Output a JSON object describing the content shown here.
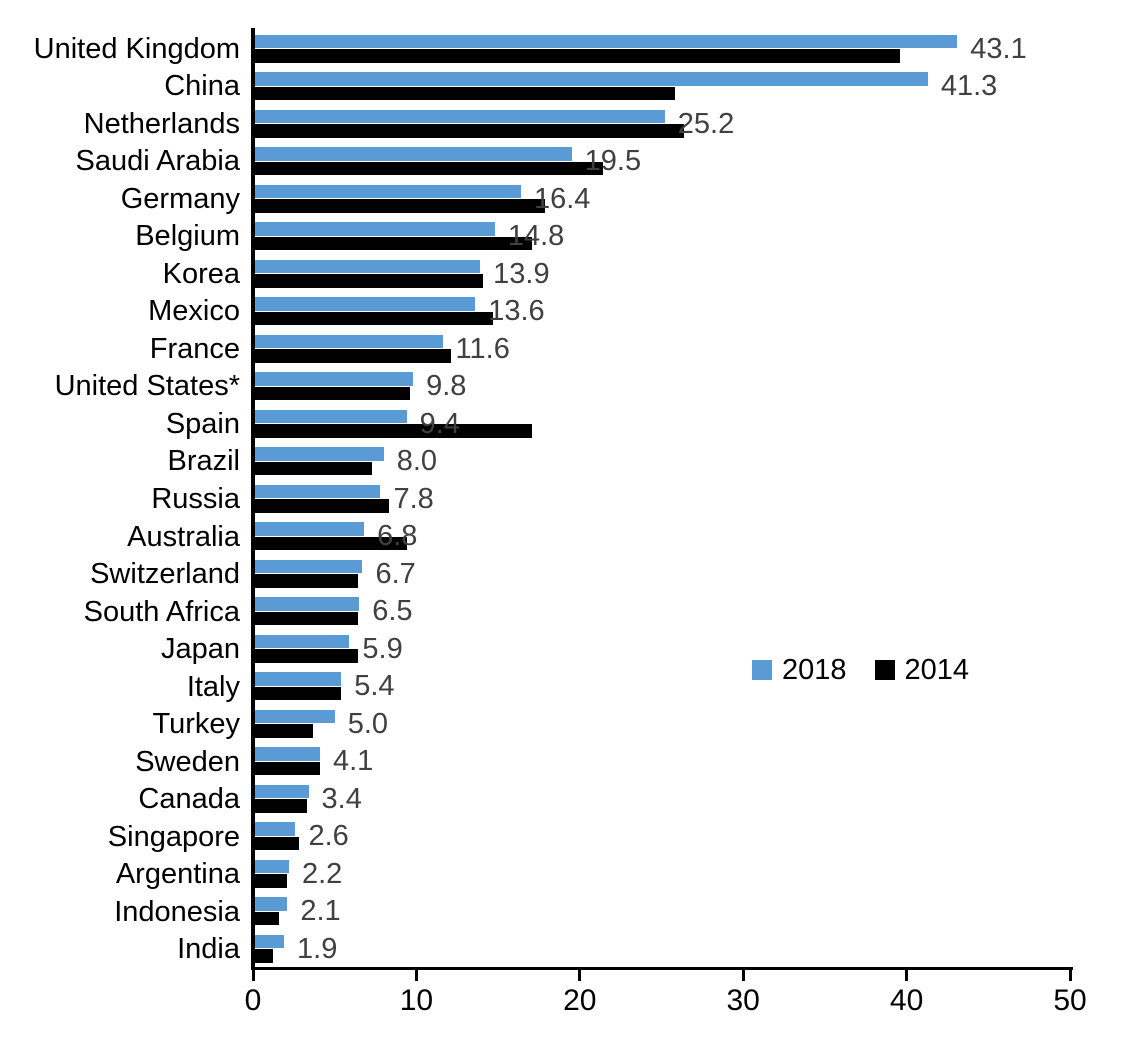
{
  "chart_data": {
    "type": "bar",
    "orientation": "horizontal",
    "title": "",
    "xlabel": "",
    "ylabel": "",
    "xlim": [
      0,
      50
    ],
    "x_ticks": [
      "0",
      "10",
      "20",
      "30",
      "40",
      "50"
    ],
    "grid": false,
    "legend_position": "center-right",
    "categories": [
      "United Kingdom",
      "China",
      "Netherlands",
      "Saudi Arabia",
      "Germany",
      "Belgium",
      "Korea",
      "Mexico",
      "France",
      "United States*",
      "Spain",
      "Brazil",
      "Russia",
      "Australia",
      "Switzerland",
      "South Africa",
      "Japan",
      "Italy",
      "Turkey",
      "Sweden",
      "Canada",
      "Singapore",
      "Argentina",
      "Indonesia",
      "India"
    ],
    "series": [
      {
        "name": "2018",
        "color": "#5B9BD5",
        "values": [
          43.1,
          41.3,
          25.2,
          19.5,
          16.4,
          14.8,
          13.9,
          13.6,
          11.6,
          9.8,
          9.4,
          8.0,
          7.8,
          6.8,
          6.7,
          6.5,
          5.9,
          5.4,
          5.0,
          4.1,
          3.4,
          2.6,
          2.2,
          2.1,
          1.9
        ]
      },
      {
        "name": "2014",
        "color": "#000000",
        "values": [
          39.6,
          25.8,
          26.4,
          21.4,
          17.9,
          17.1,
          14.1,
          14.7,
          12.1,
          9.6,
          17.1,
          7.3,
          8.3,
          9.4,
          6.4,
          6.4,
          6.4,
          5.4,
          3.7,
          4.1,
          3.3,
          2.8,
          2.1,
          1.6,
          1.2
        ]
      }
    ],
    "data_labels": [
      "43.1",
      "41.3",
      "25.2",
      "19.5",
      "16.4",
      "14.8",
      "13.9",
      "13.6",
      "11.6",
      "9.8",
      "9.4",
      "8.0",
      "7.8",
      "6.8",
      "6.7",
      "6.5",
      "5.9",
      "5.4",
      "5.0",
      "4.1",
      "3.4",
      "2.6",
      "2.2",
      "2.1",
      "1.9"
    ],
    "data_label_series": "2018",
    "data_label_color": "#404040"
  },
  "colors": {
    "background": "#FFFFFF",
    "axis": "#000000",
    "bar_2018": "#5B9BD5",
    "bar_2014": "#000000",
    "value_label": "#404040"
  }
}
